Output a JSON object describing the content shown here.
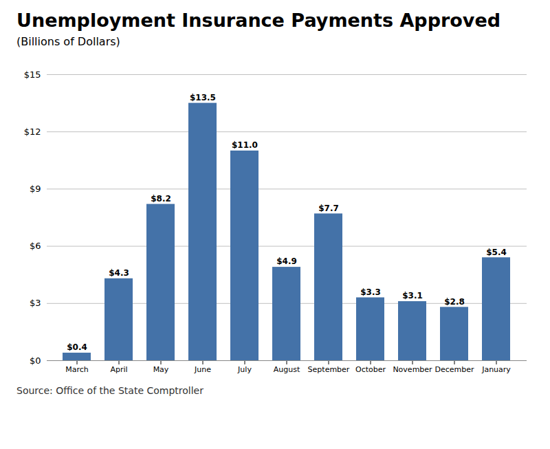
{
  "chart_data": {
    "type": "bar",
    "title": "Unemployment Insurance Payments Approved",
    "subtitle": "(Billions of Dollars)",
    "source": "Source: Office of the State Comptroller",
    "categories": [
      "March",
      "April",
      "May",
      "June",
      "July",
      "August",
      "September",
      "October",
      "November",
      "December",
      "January"
    ],
    "values": [
      0.4,
      4.3,
      8.2,
      13.5,
      11.0,
      4.9,
      7.7,
      3.3,
      3.1,
      2.8,
      5.4
    ],
    "value_labels": [
      "$0.4",
      "$4.3",
      "$8.2",
      "$13.5",
      "$11.0",
      "$4.9",
      "$7.7",
      "$3.3",
      "$3.1",
      "$2.8",
      "$5.4"
    ],
    "color": "#4472a8",
    "ylim": [
      0,
      15
    ],
    "yticks": [
      {
        "value": 0,
        "label": "$0"
      },
      {
        "value": 3,
        "label": "$3"
      },
      {
        "value": 6,
        "label": "$6"
      },
      {
        "value": 9,
        "label": "$9"
      },
      {
        "value": 12,
        "label": "$12"
      },
      {
        "value": 15,
        "label": "$15"
      }
    ],
    "grid": true,
    "data_labels": true
  }
}
